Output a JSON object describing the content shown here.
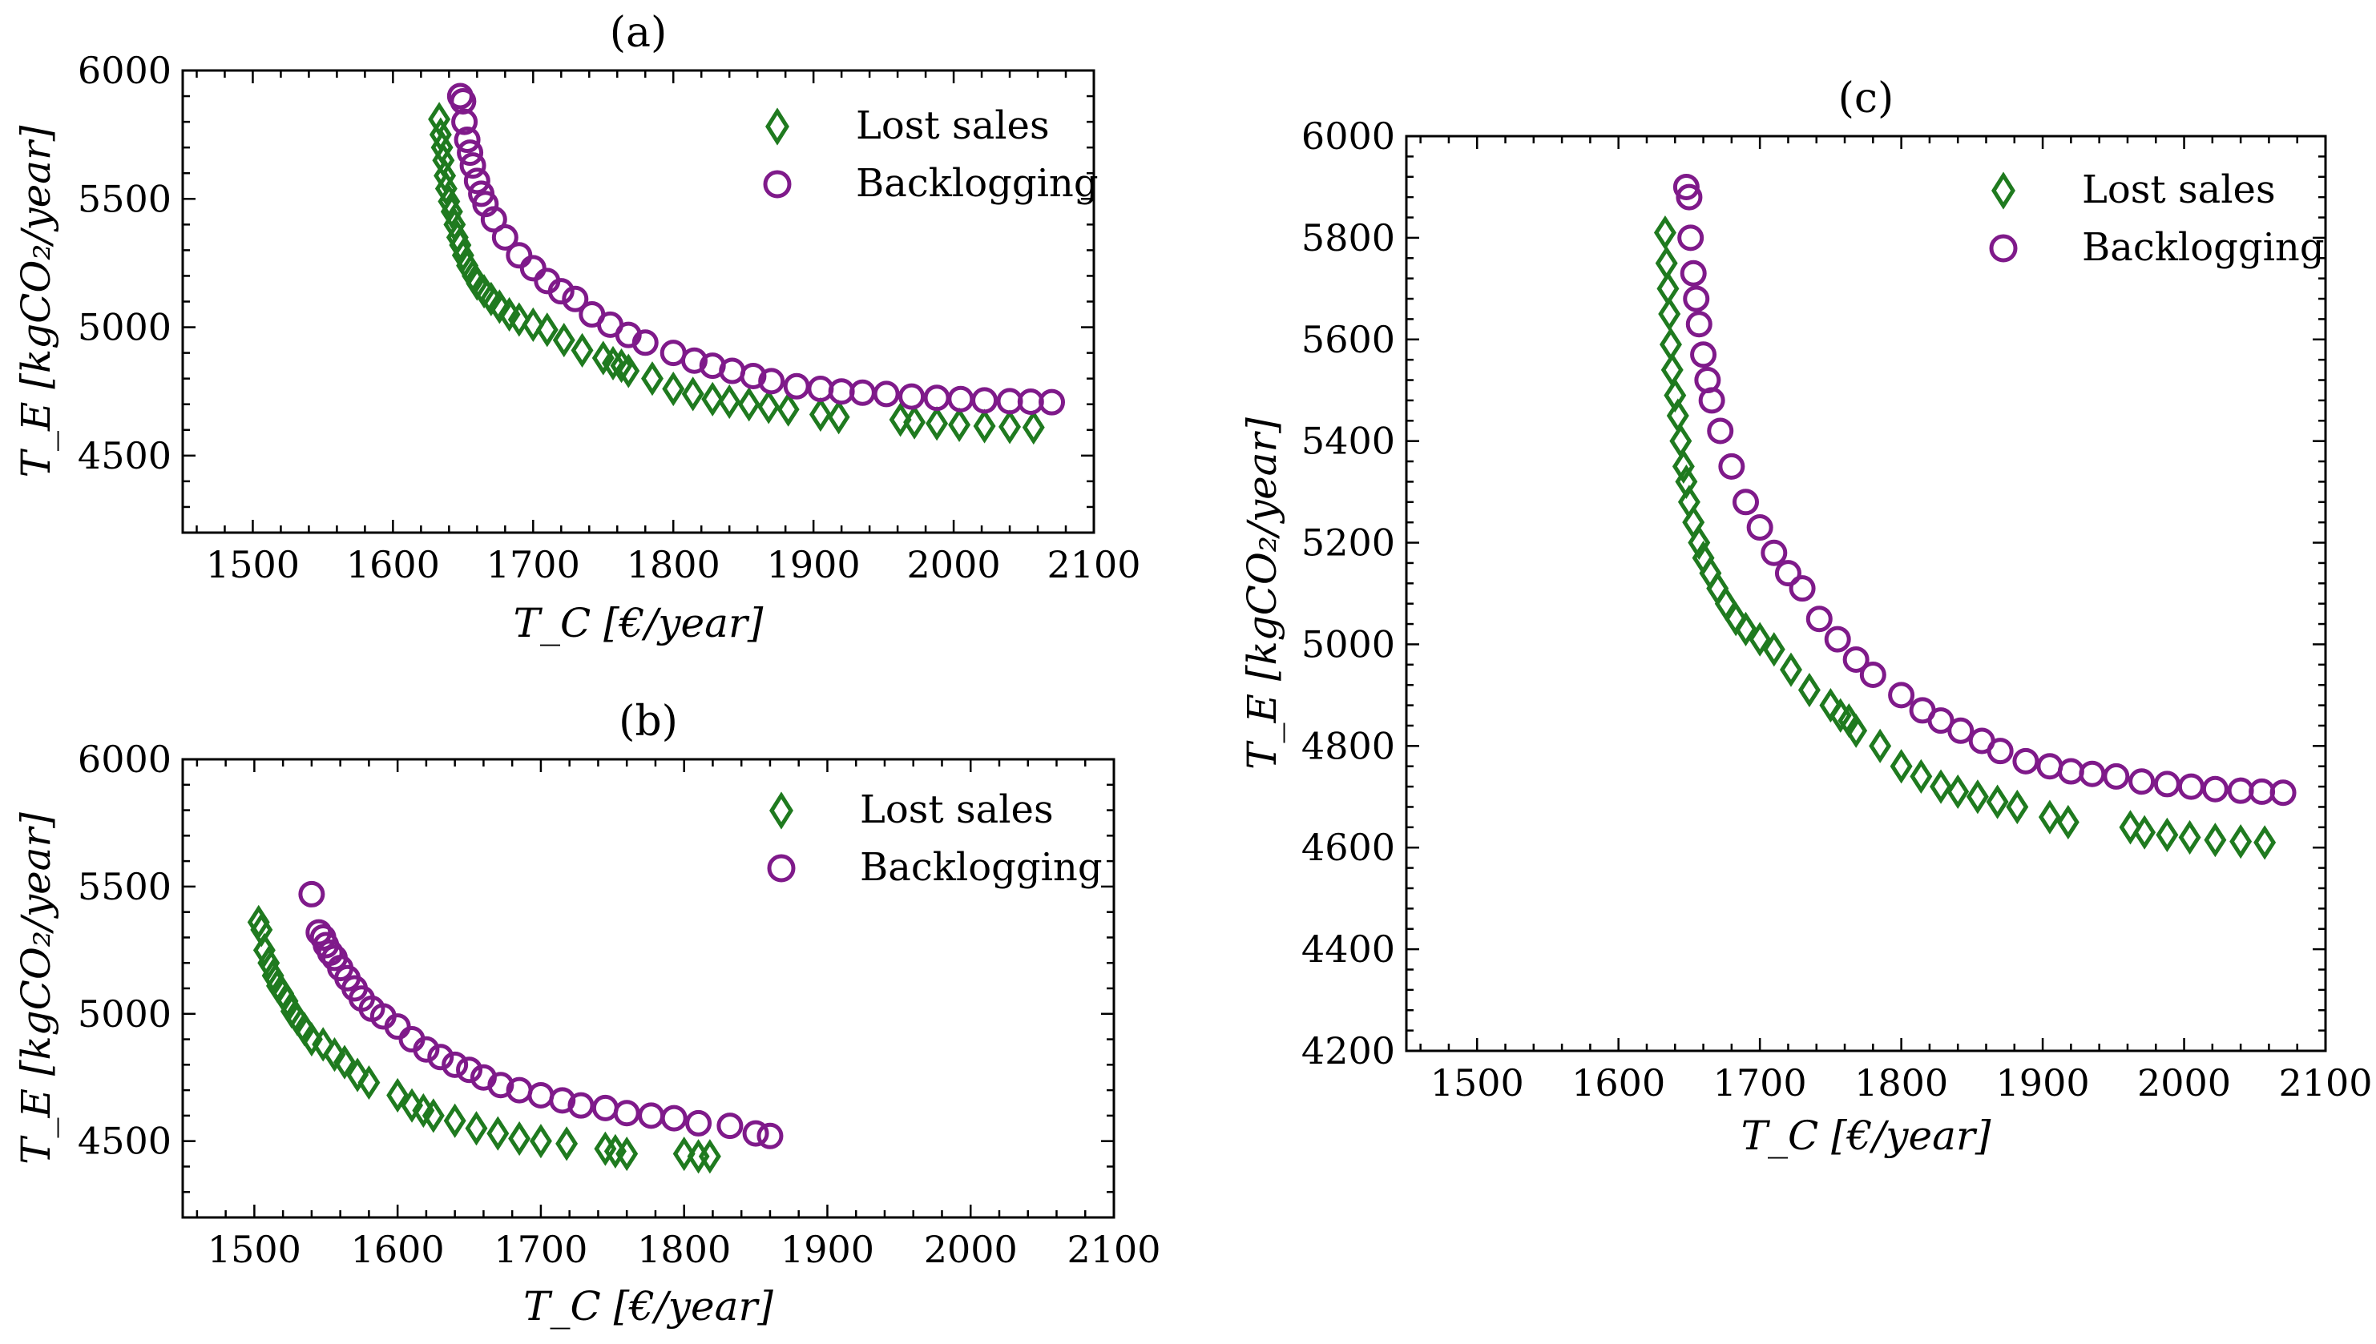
{
  "colors": {
    "lost_sales": "#1f7a1f",
    "backlogging": "#7f1a8a"
  },
  "chart_data": [
    {
      "panel": "(a)",
      "type": "scatter",
      "title": "(a)",
      "xlabel": "T_C [€/year]",
      "ylabel": "T_E [kgCO₂/year]",
      "xlim": [
        1450,
        2100
      ],
      "ylim": [
        4200,
        6000
      ],
      "xticks": [
        1500,
        1600,
        1700,
        1800,
        1900,
        2000,
        2100
      ],
      "yticks": [
        4500,
        5000,
        5500,
        6000
      ],
      "legend_position": "top-right",
      "series": [
        {
          "name": "Lost sales",
          "marker": "diamond",
          "points": [
            [
              1633,
              5810
            ],
            [
              1634,
              5750
            ],
            [
              1635,
              5700
            ],
            [
              1636,
              5650
            ],
            [
              1637,
              5590
            ],
            [
              1638,
              5540
            ],
            [
              1640,
              5490
            ],
            [
              1642,
              5450
            ],
            [
              1644,
              5400
            ],
            [
              1646,
              5350
            ],
            [
              1648,
              5320
            ],
            [
              1650,
              5280
            ],
            [
              1653,
              5240
            ],
            [
              1657,
              5200
            ],
            [
              1660,
              5170
            ],
            [
              1665,
              5140
            ],
            [
              1670,
              5110
            ],
            [
              1676,
              5080
            ],
            [
              1683,
              5050
            ],
            [
              1690,
              5030
            ],
            [
              1700,
              5010
            ],
            [
              1710,
              4990
            ],
            [
              1722,
              4950
            ],
            [
              1735,
              4910
            ],
            [
              1750,
              4880
            ],
            [
              1757,
              4860
            ],
            [
              1763,
              4850
            ],
            [
              1768,
              4830
            ],
            [
              1785,
              4800
            ],
            [
              1800,
              4760
            ],
            [
              1814,
              4740
            ],
            [
              1828,
              4720
            ],
            [
              1840,
              4710
            ],
            [
              1854,
              4700
            ],
            [
              1868,
              4690
            ],
            [
              1882,
              4680
            ],
            [
              1905,
              4660
            ],
            [
              1918,
              4650
            ],
            [
              1962,
              4640
            ],
            [
              1972,
              4630
            ],
            [
              1988,
              4625
            ],
            [
              2004,
              4620
            ],
            [
              2022,
              4615
            ],
            [
              2040,
              4612
            ],
            [
              2057,
              4610
            ]
          ]
        },
        {
          "name": "Backlogging",
          "marker": "circle",
          "points": [
            [
              1648,
              5900
            ],
            [
              1650,
              5880
            ],
            [
              1651,
              5800
            ],
            [
              1653,
              5730
            ],
            [
              1655,
              5680
            ],
            [
              1657,
              5630
            ],
            [
              1660,
              5570
            ],
            [
              1663,
              5520
            ],
            [
              1666,
              5480
            ],
            [
              1672,
              5420
            ],
            [
              1680,
              5350
            ],
            [
              1690,
              5280
            ],
            [
              1700,
              5230
            ],
            [
              1710,
              5180
            ],
            [
              1720,
              5140
            ],
            [
              1730,
              5110
            ],
            [
              1742,
              5050
            ],
            [
              1755,
              5010
            ],
            [
              1768,
              4970
            ],
            [
              1780,
              4940
            ],
            [
              1800,
              4900
            ],
            [
              1815,
              4870
            ],
            [
              1828,
              4850
            ],
            [
              1842,
              4830
            ],
            [
              1857,
              4810
            ],
            [
              1870,
              4790
            ],
            [
              1888,
              4770
            ],
            [
              1905,
              4760
            ],
            [
              1920,
              4750
            ],
            [
              1935,
              4745
            ],
            [
              1952,
              4740
            ],
            [
              1970,
              4730
            ],
            [
              1988,
              4725
            ],
            [
              2005,
              4720
            ],
            [
              2022,
              4715
            ],
            [
              2040,
              4712
            ],
            [
              2055,
              4710
            ],
            [
              2070,
              4708
            ]
          ]
        }
      ]
    },
    {
      "panel": "(b)",
      "type": "scatter",
      "title": "(b)",
      "xlabel": "T_C [€/year]",
      "ylabel": "T_E [kgCO₂/year]",
      "xlim": [
        1450,
        2100
      ],
      "ylim": [
        4200,
        6000
      ],
      "xticks": [
        1500,
        1600,
        1700,
        1800,
        1900,
        2000,
        2100
      ],
      "yticks": [
        4500,
        5000,
        5500,
        6000
      ],
      "legend_position": "top-right",
      "series": [
        {
          "name": "Lost sales",
          "marker": "diamond",
          "points": [
            [
              1503,
              5360
            ],
            [
              1505,
              5330
            ],
            [
              1507,
              5250
            ],
            [
              1510,
              5200
            ],
            [
              1513,
              5150
            ],
            [
              1516,
              5110
            ],
            [
              1520,
              5080
            ],
            [
              1523,
              5050
            ],
            [
              1526,
              5010
            ],
            [
              1530,
              4980
            ],
            [
              1535,
              4940
            ],
            [
              1540,
              4900
            ],
            [
              1548,
              4880
            ],
            [
              1556,
              4840
            ],
            [
              1563,
              4810
            ],
            [
              1572,
              4760
            ],
            [
              1580,
              4730
            ],
            [
              1600,
              4680
            ],
            [
              1610,
              4640
            ],
            [
              1618,
              4620
            ],
            [
              1625,
              4600
            ],
            [
              1640,
              4580
            ],
            [
              1655,
              4550
            ],
            [
              1670,
              4530
            ],
            [
              1685,
              4510
            ],
            [
              1700,
              4500
            ],
            [
              1718,
              4490
            ],
            [
              1745,
              4470
            ],
            [
              1752,
              4460
            ],
            [
              1760,
              4450
            ],
            [
              1800,
              4450
            ],
            [
              1810,
              4440
            ],
            [
              1818,
              4440
            ]
          ]
        },
        {
          "name": "Backlogging",
          "marker": "circle",
          "points": [
            [
              1540,
              5470
            ],
            [
              1545,
              5320
            ],
            [
              1548,
              5300
            ],
            [
              1550,
              5270
            ],
            [
              1553,
              5240
            ],
            [
              1556,
              5220
            ],
            [
              1560,
              5180
            ],
            [
              1565,
              5140
            ],
            [
              1570,
              5100
            ],
            [
              1575,
              5060
            ],
            [
              1582,
              5020
            ],
            [
              1590,
              4990
            ],
            [
              1600,
              4950
            ],
            [
              1610,
              4900
            ],
            [
              1620,
              4860
            ],
            [
              1630,
              4830
            ],
            [
              1640,
              4800
            ],
            [
              1650,
              4780
            ],
            [
              1660,
              4750
            ],
            [
              1672,
              4720
            ],
            [
              1685,
              4700
            ],
            [
              1700,
              4680
            ],
            [
              1715,
              4660
            ],
            [
              1728,
              4640
            ],
            [
              1745,
              4630
            ],
            [
              1760,
              4610
            ],
            [
              1777,
              4600
            ],
            [
              1793,
              4590
            ],
            [
              1810,
              4570
            ],
            [
              1832,
              4560
            ],
            [
              1850,
              4530
            ],
            [
              1860,
              4520
            ]
          ]
        }
      ]
    },
    {
      "panel": "(c)",
      "type": "scatter",
      "title": "(c)",
      "xlabel": "T_C [€/year]",
      "ylabel": "T_E [kgCO₂/year]",
      "xlim": [
        1450,
        2100
      ],
      "ylim": [
        4200,
        6000
      ],
      "xticks": [
        1500,
        1600,
        1700,
        1800,
        1900,
        2000,
        2100
      ],
      "yticks": [
        4200,
        4400,
        4600,
        4800,
        5000,
        5200,
        5400,
        5600,
        5800,
        6000
      ],
      "legend_position": "top-right",
      "series": [
        {
          "name": "Lost sales",
          "marker": "diamond",
          "points": [
            [
              1633,
              5810
            ],
            [
              1634,
              5750
            ],
            [
              1635,
              5700
            ],
            [
              1636,
              5650
            ],
            [
              1637,
              5590
            ],
            [
              1638,
              5540
            ],
            [
              1640,
              5490
            ],
            [
              1642,
              5450
            ],
            [
              1644,
              5400
            ],
            [
              1646,
              5350
            ],
            [
              1648,
              5320
            ],
            [
              1650,
              5280
            ],
            [
              1653,
              5240
            ],
            [
              1657,
              5200
            ],
            [
              1660,
              5170
            ],
            [
              1665,
              5140
            ],
            [
              1670,
              5110
            ],
            [
              1676,
              5080
            ],
            [
              1683,
              5050
            ],
            [
              1690,
              5030
            ],
            [
              1700,
              5010
            ],
            [
              1710,
              4990
            ],
            [
              1722,
              4950
            ],
            [
              1735,
              4910
            ],
            [
              1750,
              4880
            ],
            [
              1757,
              4860
            ],
            [
              1763,
              4850
            ],
            [
              1768,
              4830
            ],
            [
              1785,
              4800
            ],
            [
              1800,
              4760
            ],
            [
              1814,
              4740
            ],
            [
              1828,
              4720
            ],
            [
              1840,
              4710
            ],
            [
              1854,
              4700
            ],
            [
              1868,
              4690
            ],
            [
              1882,
              4680
            ],
            [
              1905,
              4660
            ],
            [
              1918,
              4650
            ],
            [
              1962,
              4640
            ],
            [
              1972,
              4630
            ],
            [
              1988,
              4625
            ],
            [
              2004,
              4620
            ],
            [
              2022,
              4615
            ],
            [
              2040,
              4612
            ],
            [
              2057,
              4610
            ]
          ]
        },
        {
          "name": "Backlogging",
          "marker": "circle",
          "points": [
            [
              1648,
              5900
            ],
            [
              1650,
              5880
            ],
            [
              1651,
              5800
            ],
            [
              1653,
              5730
            ],
            [
              1655,
              5680
            ],
            [
              1657,
              5630
            ],
            [
              1660,
              5570
            ],
            [
              1663,
              5520
            ],
            [
              1666,
              5480
            ],
            [
              1672,
              5420
            ],
            [
              1680,
              5350
            ],
            [
              1690,
              5280
            ],
            [
              1700,
              5230
            ],
            [
              1710,
              5180
            ],
            [
              1720,
              5140
            ],
            [
              1730,
              5110
            ],
            [
              1742,
              5050
            ],
            [
              1755,
              5010
            ],
            [
              1768,
              4970
            ],
            [
              1780,
              4940
            ],
            [
              1800,
              4900
            ],
            [
              1815,
              4870
            ],
            [
              1828,
              4850
            ],
            [
              1842,
              4830
            ],
            [
              1857,
              4810
            ],
            [
              1870,
              4790
            ],
            [
              1888,
              4770
            ],
            [
              1905,
              4760
            ],
            [
              1920,
              4750
            ],
            [
              1935,
              4745
            ],
            [
              1952,
              4740
            ],
            [
              1970,
              4730
            ],
            [
              1988,
              4725
            ],
            [
              2005,
              4720
            ],
            [
              2022,
              4715
            ],
            [
              2040,
              4712
            ],
            [
              2055,
              4710
            ],
            [
              2070,
              4708
            ]
          ]
        }
      ]
    }
  ]
}
